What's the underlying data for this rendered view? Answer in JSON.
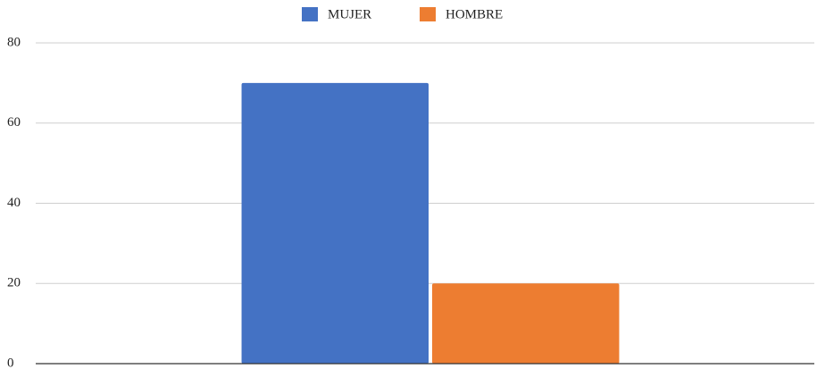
{
  "chart_data": {
    "type": "bar",
    "categories": [
      null
    ],
    "series": [
      {
        "name": "MUJER",
        "color": "#4472c4",
        "values": [
          70
        ]
      },
      {
        "name": "HOMBRE",
        "color": "#ed7d31",
        "values": [
          20
        ]
      }
    ],
    "ylim": [
      0,
      80
    ],
    "yticks": [
      0,
      20,
      40,
      60,
      80
    ],
    "grid": true,
    "legend": "top"
  }
}
